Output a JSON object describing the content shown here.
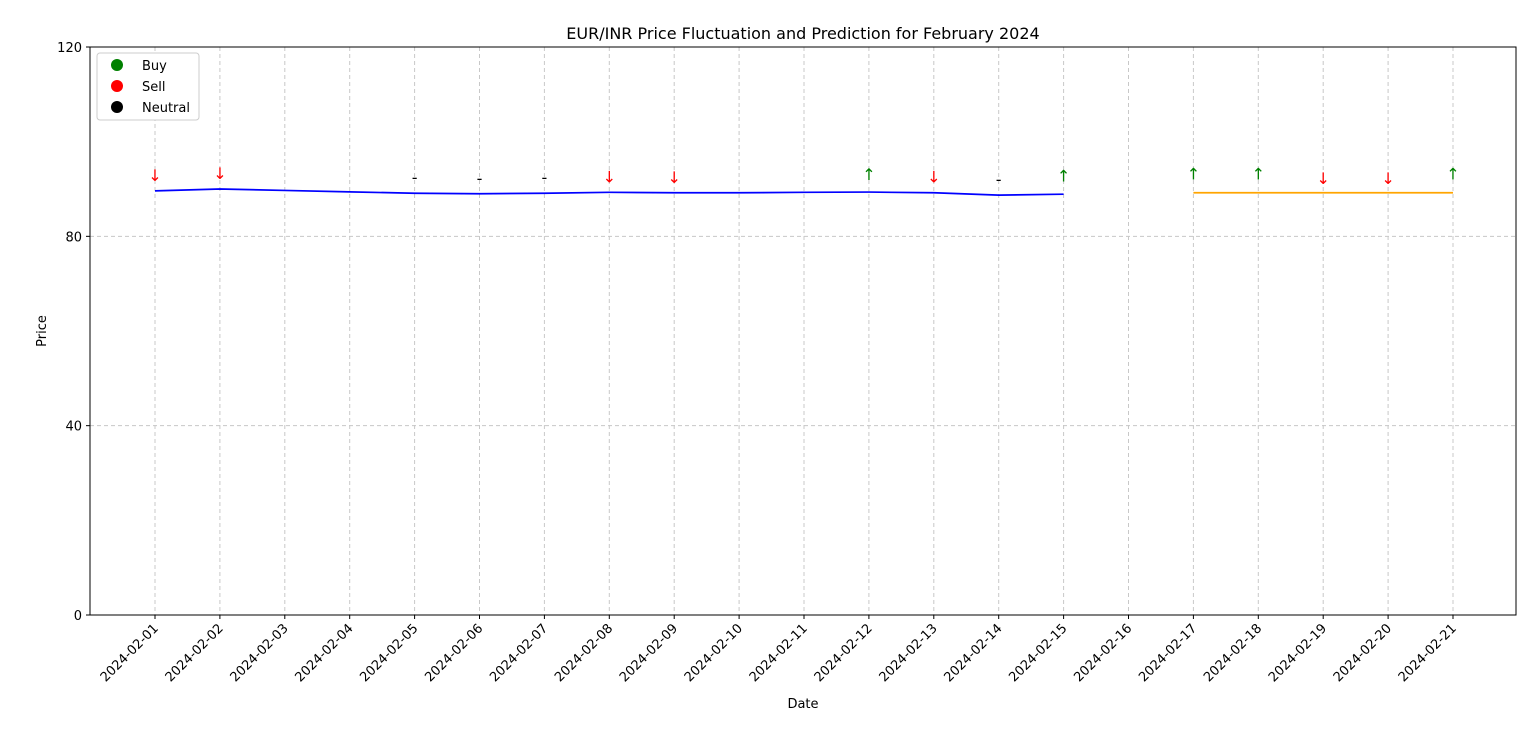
{
  "chart_data": {
    "type": "line",
    "title": "EUR/INR Price Fluctuation and Prediction for February 2024",
    "xlabel": "Date",
    "ylabel": "Price",
    "ylim": [
      0,
      120
    ],
    "yticks": [
      0,
      40,
      80,
      120
    ],
    "grid": true,
    "legend_position": "top-left",
    "categories": [
      "2024-02-01",
      "2024-02-02",
      "2024-02-03",
      "2024-02-04",
      "2024-02-05",
      "2024-02-06",
      "2024-02-07",
      "2024-02-08",
      "2024-02-09",
      "2024-02-10",
      "2024-02-11",
      "2024-02-12",
      "2024-02-13",
      "2024-02-14",
      "2024-02-15",
      "2024-02-16",
      "2024-02-17",
      "2024-02-18",
      "2024-02-19",
      "2024-02-20",
      "2024-02-21"
    ],
    "series": [
      {
        "color": "#0000ff",
        "x": [
          "2024-02-01",
          "2024-02-02",
          "2024-02-03",
          "2024-02-04",
          "2024-02-05",
          "2024-02-06",
          "2024-02-07",
          "2024-02-08",
          "2024-02-09",
          "2024-02-10",
          "2024-02-11",
          "2024-02-12",
          "2024-02-13",
          "2024-02-14",
          "2024-02-15"
        ],
        "values": [
          89.6,
          90.0,
          89.7,
          89.4,
          89.1,
          89.0,
          89.1,
          89.3,
          89.2,
          89.2,
          89.3,
          89.35,
          89.2,
          88.7,
          88.9
        ]
      },
      {
        "color": "#ffa500",
        "x": [
          "2024-02-17",
          "2024-02-18",
          "2024-02-19",
          "2024-02-20",
          "2024-02-21"
        ],
        "values": [
          89.2,
          89.2,
          89.2,
          89.2,
          89.2
        ]
      }
    ],
    "signals": [
      {
        "date": "2024-02-01",
        "type": "Sell",
        "symbol": "↓",
        "y": 93
      },
      {
        "date": "2024-02-02",
        "type": "Sell",
        "symbol": "↓",
        "y": 93.4
      },
      {
        "date": "2024-02-05",
        "type": "Neutral",
        "symbol": "-",
        "y": 92.5
      },
      {
        "date": "2024-02-06",
        "type": "Neutral",
        "symbol": "-",
        "y": 92.3
      },
      {
        "date": "2024-02-07",
        "type": "Neutral",
        "symbol": "-",
        "y": 92.5
      },
      {
        "date": "2024-02-08",
        "type": "Sell",
        "symbol": "↓",
        "y": 92.6
      },
      {
        "date": "2024-02-09",
        "type": "Sell",
        "symbol": "↓",
        "y": 92.5
      },
      {
        "date": "2024-02-12",
        "type": "Buy",
        "symbol": "↑",
        "y": 93.2
      },
      {
        "date": "2024-02-13",
        "type": "Sell",
        "symbol": "↓",
        "y": 92.6
      },
      {
        "date": "2024-02-14",
        "type": "Neutral",
        "symbol": "-",
        "y": 92.1
      },
      {
        "date": "2024-02-15",
        "type": "Buy",
        "symbol": "↑",
        "y": 92.8
      },
      {
        "date": "2024-02-17",
        "type": "Buy",
        "symbol": "↑",
        "y": 93.3
      },
      {
        "date": "2024-02-18",
        "type": "Buy",
        "symbol": "↑",
        "y": 93.3
      },
      {
        "date": "2024-02-19",
        "type": "Sell",
        "symbol": "↓",
        "y": 92.3
      },
      {
        "date": "2024-02-20",
        "type": "Sell",
        "symbol": "↓",
        "y": 92.3
      },
      {
        "date": "2024-02-21",
        "type": "Buy",
        "symbol": "↑",
        "y": 93.3
      }
    ],
    "signal_colors": {
      "Buy": "#008000",
      "Sell": "#ff0000",
      "Neutral": "#000000"
    },
    "legend": [
      {
        "label": "Buy",
        "color": "#008000"
      },
      {
        "label": "Sell",
        "color": "#ff0000"
      },
      {
        "label": "Neutral",
        "color": "#000000"
      }
    ]
  }
}
